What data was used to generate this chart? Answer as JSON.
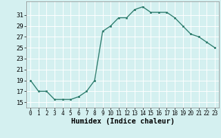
{
  "x": [
    0,
    1,
    2,
    3,
    4,
    5,
    6,
    7,
    8,
    9,
    10,
    11,
    12,
    13,
    14,
    15,
    16,
    17,
    18,
    19,
    20,
    21,
    22,
    23
  ],
  "y": [
    19,
    17,
    17,
    15.5,
    15.5,
    15.5,
    16,
    17,
    19,
    28,
    29,
    30.5,
    30.5,
    32,
    32.5,
    31.5,
    31.5,
    31.5,
    30.5,
    29,
    27.5,
    27,
    26,
    25
  ],
  "line_color": "#2e7d6e",
  "marker": "s",
  "marker_size": 2,
  "bg_color": "#d4f0f0",
  "grid_color": "#ffffff",
  "xlabel": "Humidex (Indice chaleur)",
  "xlabel_fontsize": 7.5,
  "ylabel_ticks": [
    15,
    17,
    19,
    21,
    23,
    25,
    27,
    29,
    31
  ],
  "ylim": [
    14.0,
    33.5
  ],
  "xlim": [
    -0.5,
    23.5
  ],
  "xtick_labels": [
    "0",
    "1",
    "2",
    "3",
    "4",
    "5",
    "6",
    "7",
    "8",
    "9",
    "10",
    "11",
    "12",
    "13",
    "14",
    "15",
    "16",
    "17",
    "18",
    "19",
    "20",
    "21",
    "22",
    "23"
  ],
  "ytick_fontsize": 6.5,
  "xtick_fontsize": 5.5,
  "line_width": 1.0
}
